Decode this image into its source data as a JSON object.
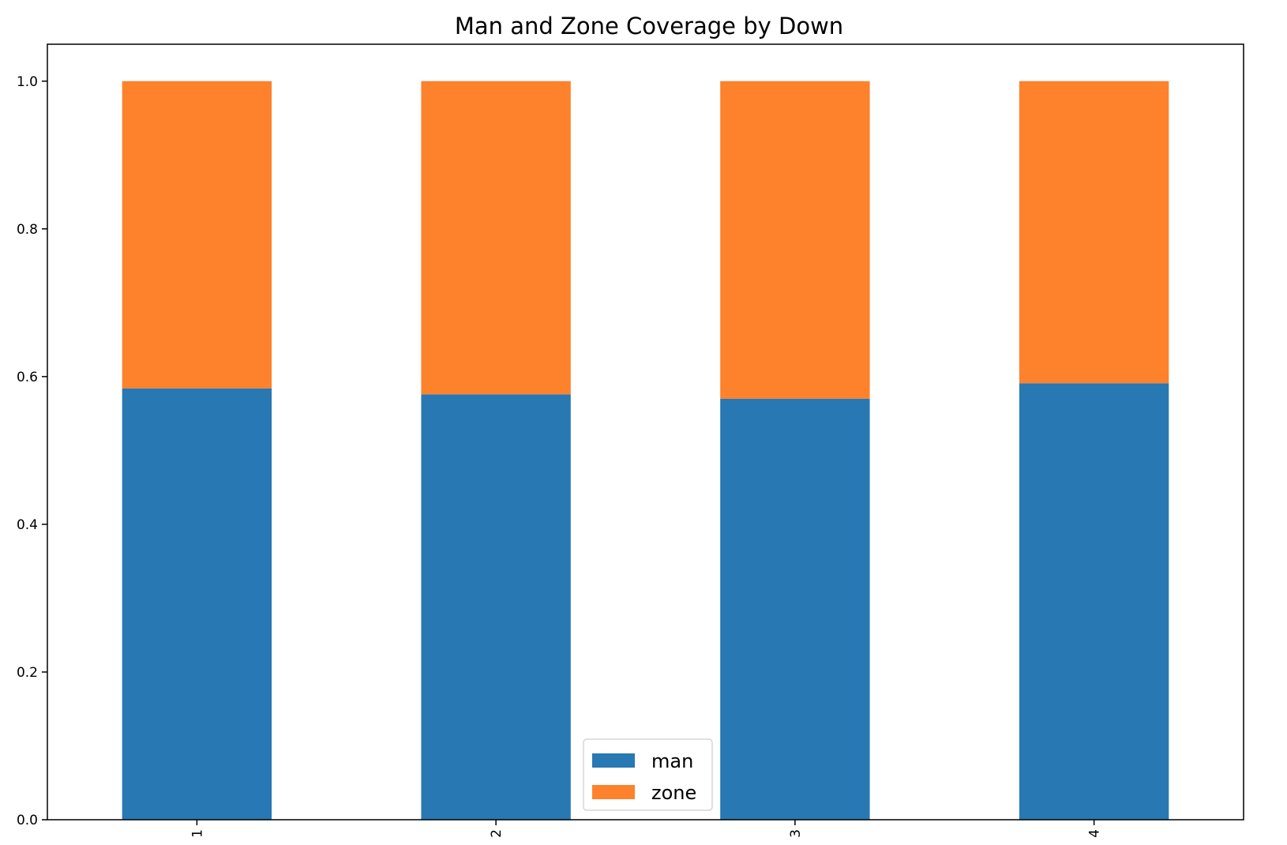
{
  "chart_data": {
    "type": "bar",
    "stacked": true,
    "title": "Man and Zone Coverage by Down",
    "xlabel": "",
    "ylabel": "",
    "categories": [
      "1",
      "2",
      "3",
      "4"
    ],
    "series": [
      {
        "name": "man",
        "color": "#2778b3",
        "values": [
          0.584,
          0.576,
          0.57,
          0.591
        ]
      },
      {
        "name": "zone",
        "color": "#fe812b",
        "values": [
          0.416,
          0.424,
          0.43,
          0.409
        ]
      }
    ],
    "ylim": [
      0,
      1.05
    ],
    "yticks": [
      "0.0",
      "0.2",
      "0.4",
      "0.6",
      "0.8",
      "1.0"
    ],
    "grid": false,
    "legend_position": "lower-center"
  }
}
